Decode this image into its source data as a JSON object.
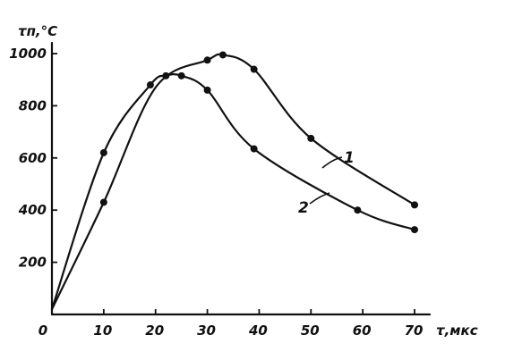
{
  "chart_data": {
    "type": "line",
    "title": "",
    "ylabel": "τп,°C",
    "xlabel": "τ,мкс",
    "xlim": [
      0,
      70
    ],
    "ylim": [
      0,
      1000
    ],
    "xticks": [
      0,
      10,
      20,
      30,
      40,
      50,
      60,
      70
    ],
    "xtick_labels": [
      "0",
      "10",
      "20",
      "30",
      "40",
      "50",
      "60",
      "70"
    ],
    "yticks": [
      200,
      400,
      600,
      800,
      1000
    ],
    "ytick_labels": [
      "200",
      "400",
      "600",
      "800",
      "1000"
    ],
    "grid": false,
    "legend": "none",
    "series": [
      {
        "name": "1",
        "points": [
          [
            0,
            20
          ],
          [
            10,
            430
          ],
          [
            20,
            870
          ],
          [
            30,
            975
          ],
          [
            33,
            995
          ],
          [
            39,
            940
          ],
          [
            50,
            675
          ],
          [
            70,
            420
          ]
        ],
        "markers": [
          [
            10,
            430
          ],
          [
            25,
            915
          ],
          [
            30,
            975
          ],
          [
            33,
            995
          ],
          [
            39,
            940
          ],
          [
            50,
            675
          ],
          [
            70,
            420
          ]
        ]
      },
      {
        "name": "2",
        "points": [
          [
            0,
            20
          ],
          [
            10,
            620
          ],
          [
            19,
            880
          ],
          [
            22,
            915
          ],
          [
            25,
            915
          ],
          [
            30,
            860
          ],
          [
            39,
            635
          ],
          [
            59,
            400
          ],
          [
            70,
            325
          ]
        ],
        "markers": [
          [
            10,
            620
          ],
          [
            19,
            880
          ],
          [
            22,
            915
          ],
          [
            30,
            860
          ],
          [
            39,
            635
          ],
          [
            59,
            400
          ],
          [
            70,
            325
          ]
        ]
      }
    ]
  }
}
